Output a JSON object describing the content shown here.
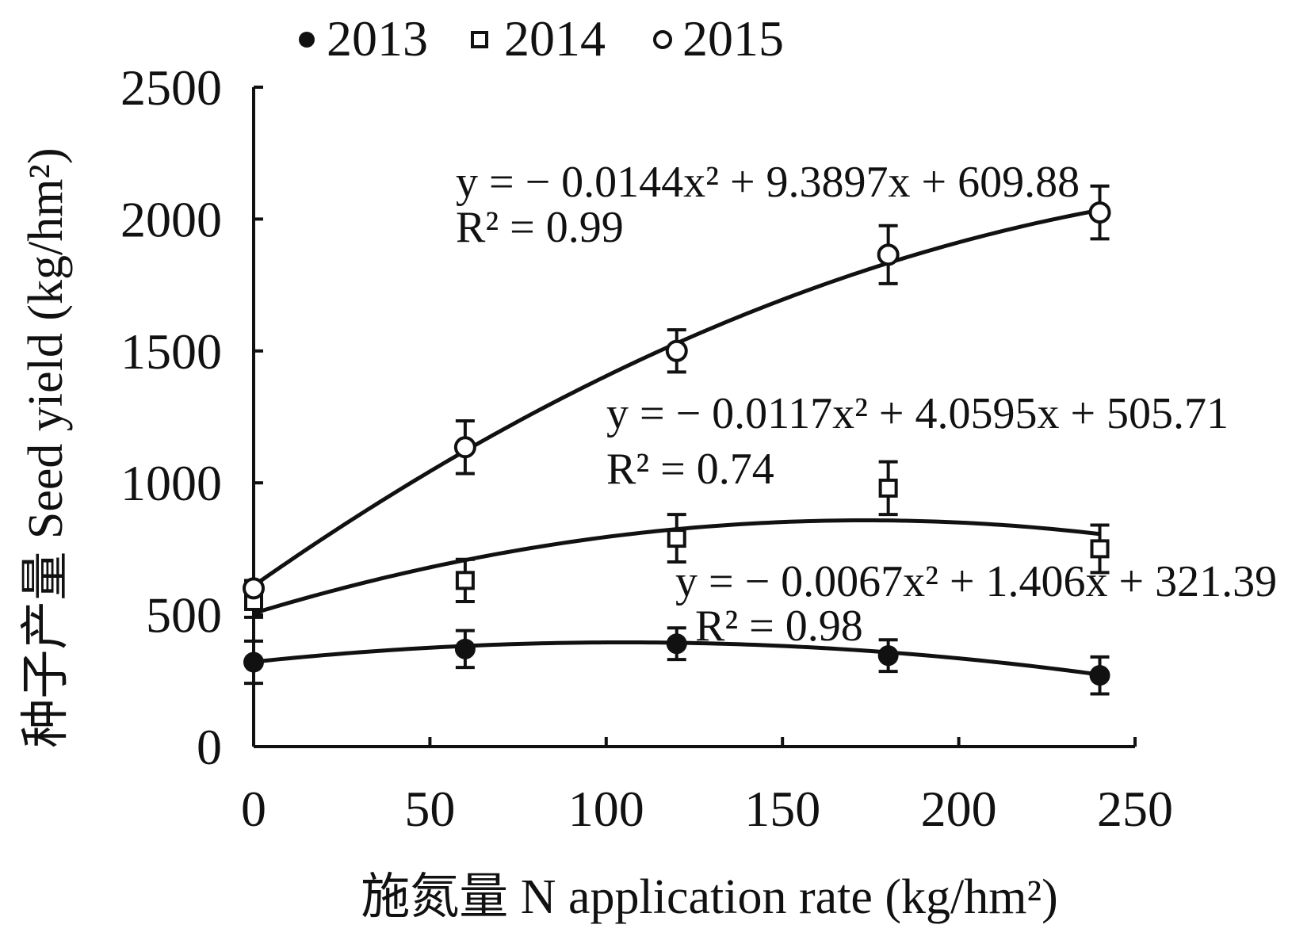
{
  "chart_data": {
    "type": "scatter",
    "title": "",
    "xlabel": "施氮量 N application rate (kg/hm²)",
    "ylabel": "种子产量 Seed yield (kg/hm²)",
    "xlim": [
      0,
      250
    ],
    "ylim": [
      0,
      2500
    ],
    "x_ticks": [
      0,
      50,
      100,
      150,
      200,
      250
    ],
    "y_ticks": [
      0,
      500,
      1000,
      1500,
      2000,
      2500
    ],
    "grid": false,
    "legend_position": "top",
    "legend": [
      "2013",
      "2014",
      "2015"
    ],
    "x": [
      0,
      60,
      120,
      180,
      240
    ],
    "series": [
      {
        "name": "2013",
        "marker": "filled-circle",
        "values": [
          320,
          370,
          390,
          345,
          270
        ],
        "errors": [
          80,
          70,
          60,
          60,
          70
        ],
        "fit": {
          "a": -0.0067,
          "b": 1.406,
          "c": 321.39
        },
        "equation": "y = − 0.0067x² + 1.406x + 321.39",
        "r2": "R² = 0.98"
      },
      {
        "name": "2014",
        "marker": "open-square",
        "values": [
          550,
          630,
          790,
          980,
          750
        ],
        "errors": [
          60,
          80,
          90,
          100,
          90
        ],
        "fit": {
          "a": -0.0117,
          "b": 4.0595,
          "c": 505.71
        },
        "equation": "y = − 0.0117x² + 4.0595x + 505.71",
        "r2": "R² = 0.74"
      },
      {
        "name": "2015",
        "marker": "open-circle",
        "values": [
          600,
          1135,
          1500,
          1865,
          2025
        ],
        "errors": [
          30,
          100,
          80,
          110,
          100
        ],
        "fit": {
          "a": -0.0144,
          "b": 9.3897,
          "c": 609.88
        },
        "equation": "y = − 0.0144x² + 9.3897x + 609.88",
        "r2": "R² = 0.99"
      }
    ]
  }
}
